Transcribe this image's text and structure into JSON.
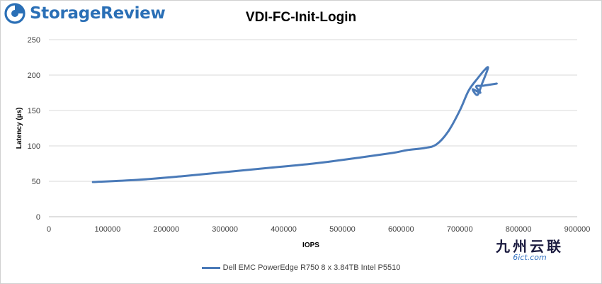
{
  "brand": {
    "name": "StorageReview",
    "color": "#2a6fb6"
  },
  "watermark": {
    "cn": "九州云联",
    "en": "6ict.com"
  },
  "chart_data": {
    "type": "line",
    "title": "VDI-FC-Init-Login",
    "xlabel": "IOPS",
    "ylabel": "Latency (µs)",
    "xlim": [
      0,
      900000
    ],
    "ylim": [
      0,
      250
    ],
    "xticks": [
      0,
      100000,
      200000,
      300000,
      400000,
      500000,
      600000,
      700000,
      800000,
      900000
    ],
    "xtick_labels": [
      "0",
      "100000",
      "200000",
      "300000",
      "400000",
      "500000",
      "600000",
      "700000",
      "800000",
      "900000"
    ],
    "yticks": [
      0,
      50,
      100,
      150,
      200,
      250
    ],
    "ytick_labels": [
      "0",
      "50",
      "100",
      "150",
      "200",
      "250"
    ],
    "grid": "horizontal",
    "legend_position": "bottom",
    "series": [
      {
        "name": "Dell EMC PowerEdge R750 8 x 3.84TB Intel P5510",
        "color": "#4a7ab8",
        "x": [
          75000,
          150000,
          225000,
          300000,
          375000,
          450000,
          525000,
          585000,
          610000,
          640000,
          660000,
          680000,
          700000,
          715000,
          730000,
          742000,
          748000,
          738000,
          730000,
          722000,
          735000,
          728000,
          740000,
          763000
        ],
        "y": [
          49,
          52,
          57,
          63,
          69,
          75,
          83,
          90,
          94,
          97,
          102,
          120,
          150,
          178,
          195,
          207,
          210,
          188,
          172,
          180,
          175,
          184,
          185,
          188
        ]
      }
    ]
  }
}
